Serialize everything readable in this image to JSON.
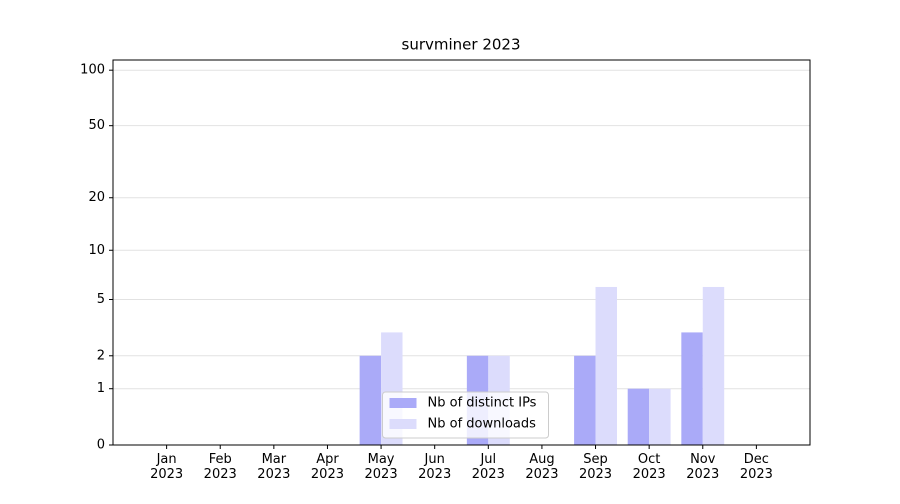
{
  "chart_data": {
    "type": "bar",
    "title": "survminer 2023",
    "categories": [
      "Jan\n2023",
      "Feb\n2023",
      "Mar\n2023",
      "Apr\n2023",
      "May\n2023",
      "Jun\n2023",
      "Jul\n2023",
      "Aug\n2023",
      "Sep\n2023",
      "Oct\n2023",
      "Nov\n2023",
      "Dec\n2023"
    ],
    "series": [
      {
        "name": "Nb of distinct IPs",
        "color": "#aaaaf8",
        "values": [
          0,
          0,
          0,
          0,
          2,
          0,
          2,
          0,
          2,
          1,
          3,
          0
        ]
      },
      {
        "name": "Nb of downloads",
        "color": "#dcdcfc",
        "values": [
          0,
          0,
          0,
          0,
          3,
          0,
          2,
          0,
          6,
          1,
          6,
          0
        ]
      }
    ],
    "yscale": "log1p",
    "ylim": [
      0,
      113.5
    ],
    "yticks": [
      0,
      1,
      2,
      5,
      10,
      20,
      50,
      100
    ],
    "grid": true,
    "legend": "lower center"
  }
}
